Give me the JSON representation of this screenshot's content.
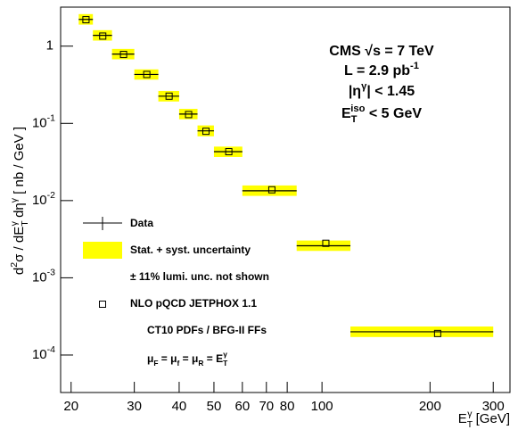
{
  "chart_data": {
    "type": "scatter",
    "log_x": true,
    "log_y": true,
    "xlim": [
      18.7,
      334
    ],
    "ylim": [
      3.27e-05,
      3.2
    ],
    "xticks": [
      20,
      30,
      40,
      50,
      60,
      70,
      80,
      100,
      200,
      300
    ],
    "yticks": [
      {
        "value": 0.0001,
        "label": [
          "10",
          "-4"
        ]
      },
      {
        "value": 0.001,
        "label": [
          "10",
          "-3"
        ]
      },
      {
        "value": 0.01,
        "label": [
          "10",
          "-2"
        ]
      },
      {
        "value": 0.1,
        "label": [
          "10",
          "-1"
        ]
      },
      1
    ],
    "xlabel": [
      "E",
      "T",
      "γ",
      " [GeV]"
    ],
    "ylabel": [
      "d",
      "2",
      "σ / dE",
      "T",
      "γ",
      " dη",
      "γ",
      " [ nb / GeV ]"
    ],
    "annotations": {
      "experiment": "CMS √s = 7 TeV",
      "lumi": [
        "L = 2.9 pb",
        "-1"
      ],
      "eta": [
        "|η",
        "γ",
        "| < 1.45"
      ],
      "iso": [
        "E",
        "T",
        "iso",
        " < 5 GeV"
      ]
    },
    "bins": [
      21,
      23,
      26,
      30,
      35,
      40,
      45,
      50,
      60,
      85,
      120,
      300
    ],
    "x": [
      22,
      24.5,
      28,
      32.5,
      37.5,
      42.5,
      47.5,
      55,
      72.5,
      102.5,
      210
    ],
    "series": [
      {
        "name": "Data",
        "color": "#000000",
        "marker": "cross",
        "values": [
          2.22,
          1.38,
          0.79,
          0.43,
          0.225,
          0.132,
          0.08,
          0.043,
          0.0134,
          0.0026,
          0.0002
        ]
      },
      {
        "name": "NLO pQCD JETPHOX 1.1",
        "color": "#000000",
        "marker": "square",
        "values": [
          2.2,
          1.35,
          0.78,
          0.43,
          0.225,
          0.13,
          0.079,
          0.043,
          0.0138,
          0.0028,
          0.00019
        ]
      }
    ],
    "band": {
      "name": "Stat. + syst. uncertainty",
      "color": "#ffff00",
      "low": [
        1.9,
        1.18,
        0.675,
        0.368,
        0.192,
        0.113,
        0.068,
        0.0367,
        0.0115,
        0.00223,
        0.000171
      ],
      "high": [
        2.6,
        1.61,
        0.92,
        0.5,
        0.263,
        0.154,
        0.094,
        0.05,
        0.0157,
        0.00304,
        0.000234
      ]
    },
    "notes": [
      "± 11% lumi. unc. not shown",
      "CT10 PDFs / BFG-II FFs"
    ],
    "scale_label": [
      "μ",
      "F",
      " = μ",
      "f",
      " = μ",
      "R",
      " = E",
      "T",
      "γ"
    ]
  }
}
